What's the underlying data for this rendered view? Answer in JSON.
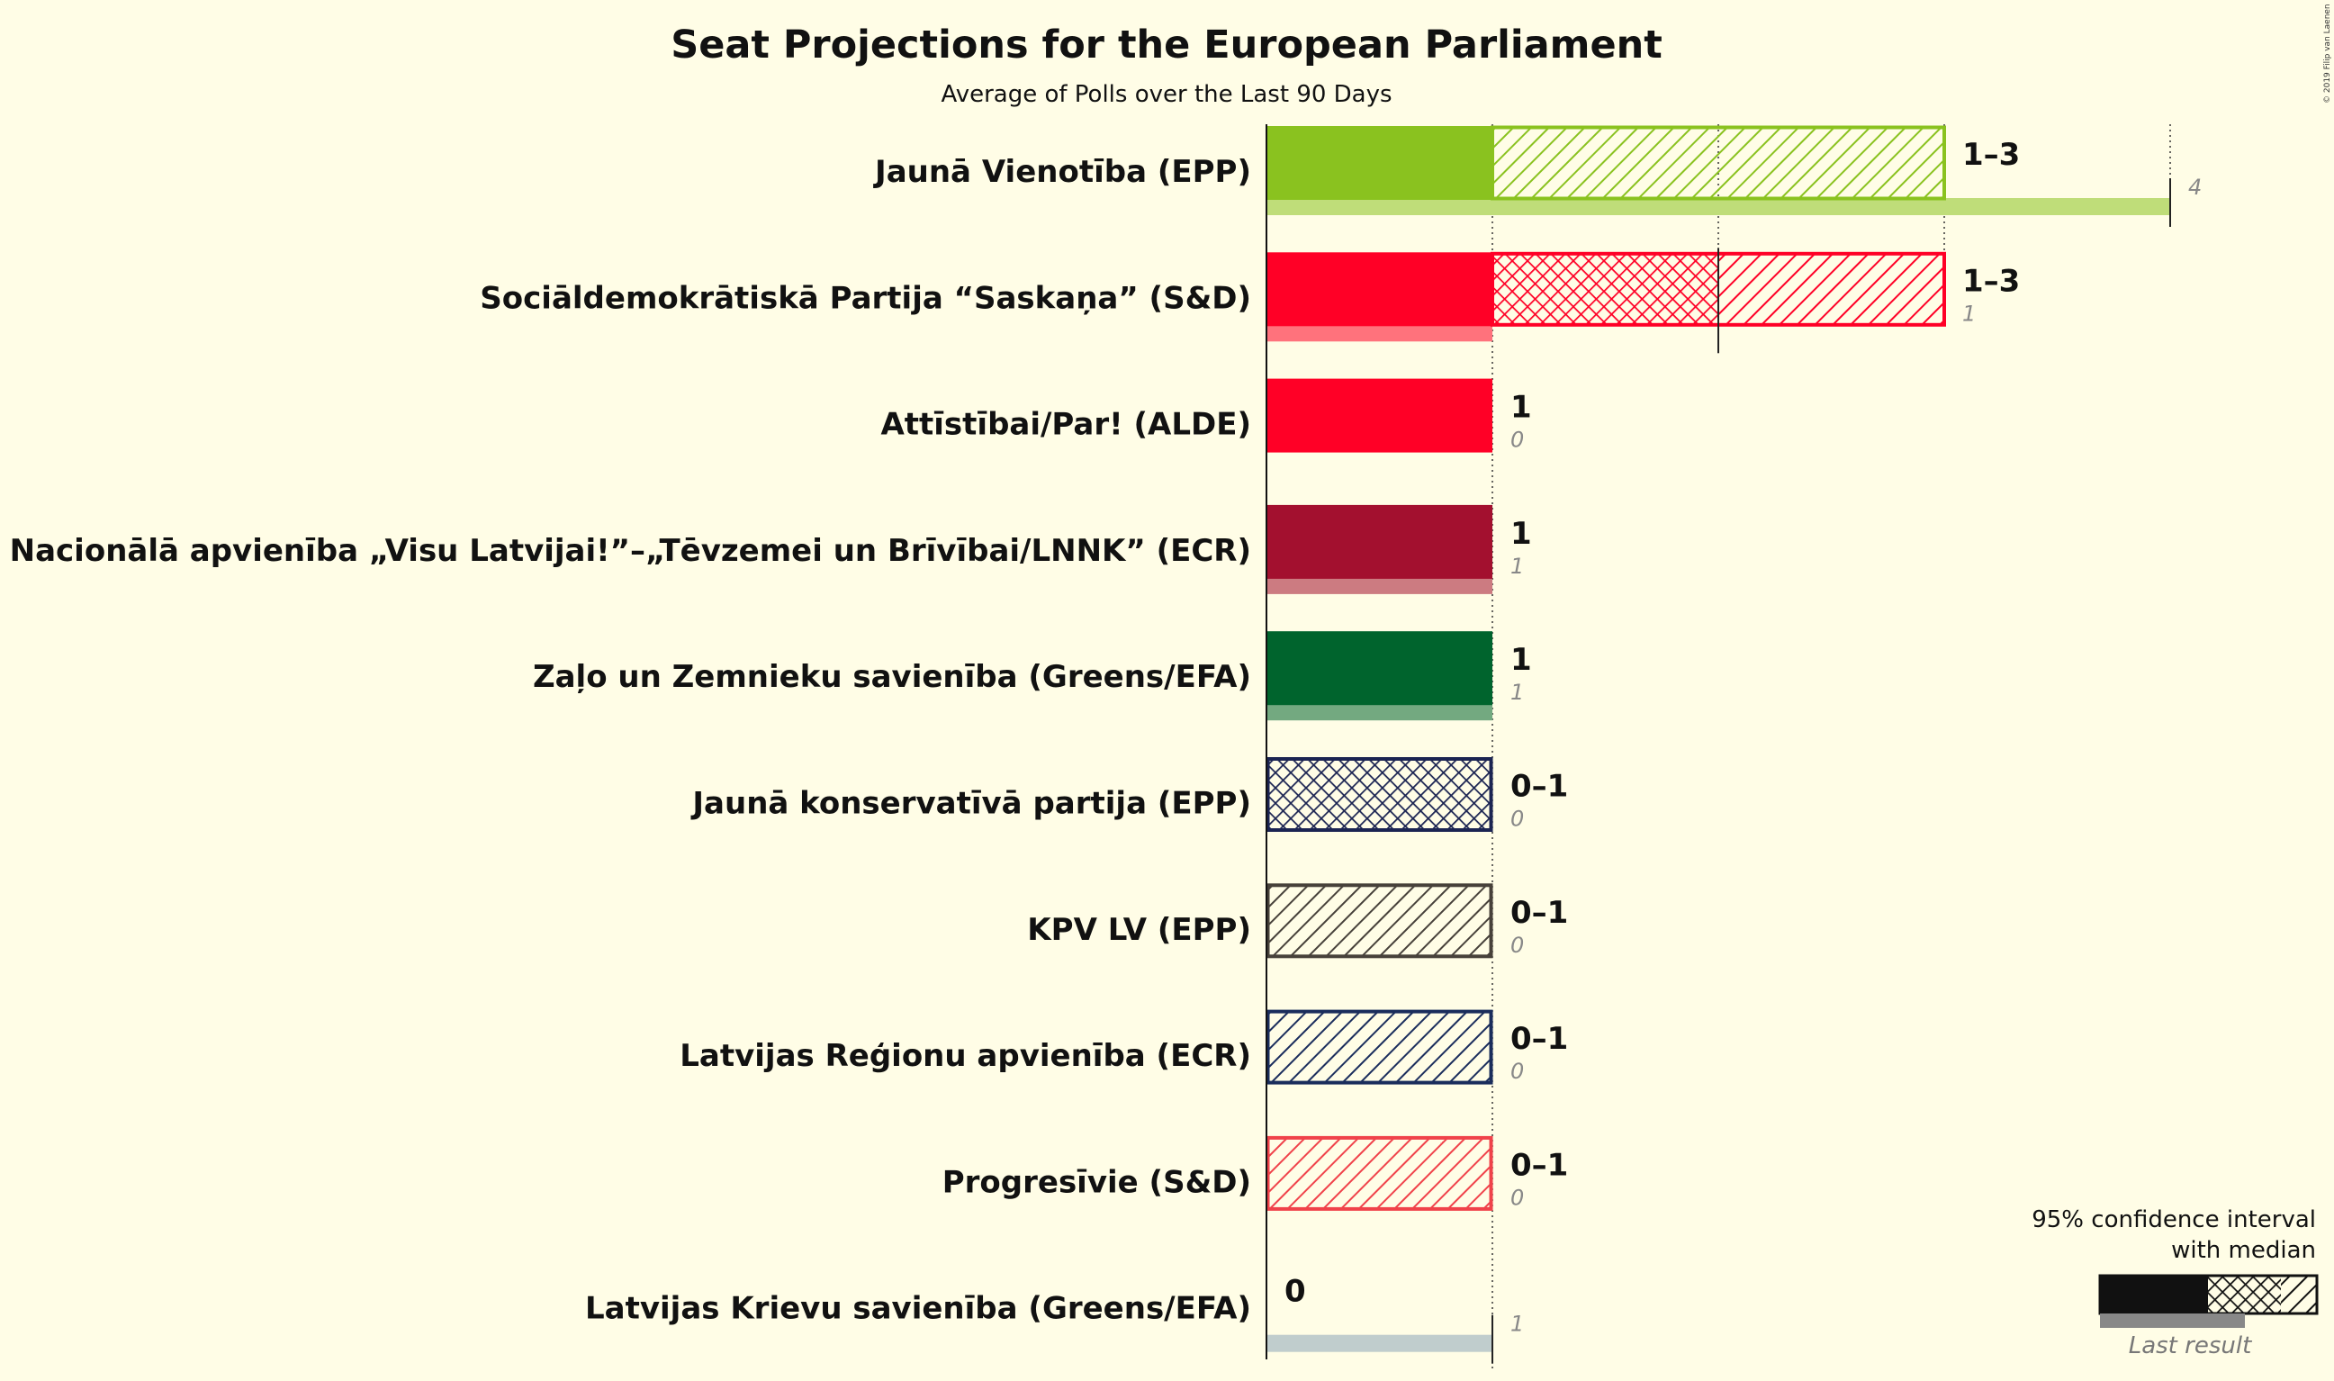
{
  "chart_data": {
    "type": "bar",
    "title": "Seat Projections for the European Parliament",
    "subtitle": "Average of Polls over the Last 90 Days",
    "xlim": [
      0,
      4
    ],
    "parties": [
      {
        "name": "Jaunā Vienotība (EPP)",
        "color": "#8ac21f",
        "ci_low": 1,
        "median": 1,
        "ci_high": 3,
        "range_label": "1–3",
        "last_result": 4,
        "last_label": "4",
        "pattern": "median-hatch"
      },
      {
        "name": "Sociāldemokrātiskā Partija “Saskaņa” (S&D)",
        "color": "#ff0026",
        "ci_low": 1,
        "median": 2,
        "ci_high": 3,
        "range_label": "1–3",
        "last_result": 1,
        "last_label": "1",
        "pattern": "median-hatch"
      },
      {
        "name": "Attīstībai/Par! (ALDE)",
        "color": "#ff0026",
        "ci_low": 1,
        "median": 1,
        "ci_high": 1,
        "range_label": "1",
        "last_result": 0,
        "last_label": "0",
        "pattern": "solid"
      },
      {
        "name": "Nacionālā apvienība „Visu Latvijai!”–„Tēvzemei un Brīvībai/LNNK” (ECR)",
        "color": "#a3102f",
        "ci_low": 1,
        "median": 1,
        "ci_high": 1,
        "range_label": "1",
        "last_result": 1,
        "last_label": "1",
        "pattern": "solid"
      },
      {
        "name": "Zaļo un Zemnieku savienība (Greens/EFA)",
        "color": "#00642d",
        "ci_low": 1,
        "median": 1,
        "ci_high": 1,
        "range_label": "1",
        "last_result": 1,
        "last_label": "1",
        "pattern": "solid"
      },
      {
        "name": "Jaunā konservatīvā partija (EPP)",
        "color": "#1b2452",
        "ci_low": 0,
        "median": 1,
        "ci_high": 1,
        "range_label": "0–1",
        "last_result": 0,
        "last_label": "0",
        "pattern": "cross"
      },
      {
        "name": "KPV LV (EPP)",
        "color": "#47413a",
        "ci_low": 0,
        "median": 0,
        "ci_high": 1,
        "range_label": "0–1",
        "last_result": 0,
        "last_label": "0",
        "pattern": "hatch"
      },
      {
        "name": "Latvijas Reģionu apvienība (ECR)",
        "color": "#1a2d5c",
        "ci_low": 0,
        "median": 0,
        "ci_high": 1,
        "range_label": "0–1",
        "last_result": 0,
        "last_label": "0",
        "pattern": "hatch"
      },
      {
        "name": "Progresīvie (S&D)",
        "color": "#f0424a",
        "ci_low": 0,
        "median": 0,
        "ci_high": 1,
        "range_label": "0–1",
        "last_result": 0,
        "last_label": "0",
        "pattern": "hatch"
      },
      {
        "name": "Latvijas Krievu savienība (Greens/EFA)",
        "color": "#8ca6b8",
        "ci_low": 0,
        "median": 0,
        "ci_high": 0,
        "range_label": "0",
        "last_result": 1,
        "last_label": "1",
        "pattern": "none"
      }
    ],
    "legend": {
      "title_line1": "95% confidence interval",
      "title_line2": "with median",
      "last_result_label": "Last result",
      "placement": "bottom-right"
    },
    "copyright": "© 2019 Filip van Laenen"
  }
}
